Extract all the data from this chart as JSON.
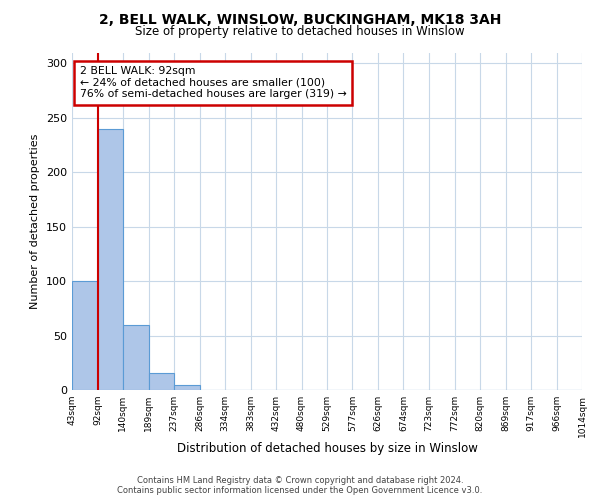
{
  "title": "2, BELL WALK, WINSLOW, BUCKINGHAM, MK18 3AH",
  "subtitle": "Size of property relative to detached houses in Winslow",
  "xlabel": "Distribution of detached houses by size in Winslow",
  "ylabel": "Number of detached properties",
  "bar_color": "#aec6e8",
  "bar_edge_color": "#5b9bd5",
  "background_color": "#ffffff",
  "grid_color": "#c8d8e8",
  "bin_edges": [
    43,
    92,
    140,
    189,
    237,
    286,
    334,
    383,
    432,
    480,
    529,
    577,
    626,
    674,
    723,
    772,
    820,
    869,
    917,
    966,
    1014
  ],
  "bin_labels": [
    "43sqm",
    "92sqm",
    "140sqm",
    "189sqm",
    "237sqm",
    "286sqm",
    "334sqm",
    "383sqm",
    "432sqm",
    "480sqm",
    "529sqm",
    "577sqm",
    "626sqm",
    "674sqm",
    "723sqm",
    "772sqm",
    "820sqm",
    "869sqm",
    "917sqm",
    "966sqm",
    "1014sqm"
  ],
  "counts": [
    100,
    240,
    60,
    16,
    5,
    0,
    0,
    0,
    0,
    0,
    0,
    0,
    0,
    0,
    0,
    0,
    0,
    0,
    0,
    0
  ],
  "ylim": [
    0,
    310
  ],
  "yticks": [
    0,
    50,
    100,
    150,
    200,
    250,
    300
  ],
  "property_label": "2 BELL WALK: 92sqm",
  "annotation_line1": "← 24% of detached houses are smaller (100)",
  "annotation_line2": "76% of semi-detached houses are larger (319) →",
  "vline_x": 92,
  "vline_color": "#cc0000",
  "box_color": "#cc0000",
  "footer_line1": "Contains HM Land Registry data © Crown copyright and database right 2024.",
  "footer_line2": "Contains public sector information licensed under the Open Government Licence v3.0."
}
